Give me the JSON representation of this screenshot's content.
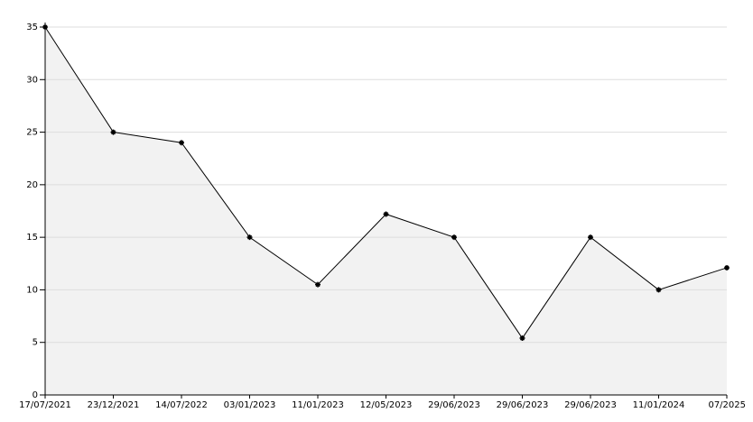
{
  "chart_data": {
    "type": "line",
    "categories": [
      "17/07/2021",
      "23/12/2021",
      "14/07/2022",
      "03/01/2023",
      "11/01/2023",
      "12/05/2023",
      "29/06/2023",
      "29/06/2023",
      "29/06/2023",
      "11/01/2024",
      "07/2025"
    ],
    "series": [
      {
        "color": "#000000",
        "fill": "#f2f2f2",
        "values": [
          35,
          25,
          24,
          15,
          10.5,
          17.2,
          15,
          5.4,
          15,
          10,
          12.1
        ]
      }
    ],
    "ylim": [
      0,
      35
    ],
    "yticks": [
      0,
      5,
      10,
      15,
      20,
      25,
      30,
      35
    ],
    "grid": true
  }
}
